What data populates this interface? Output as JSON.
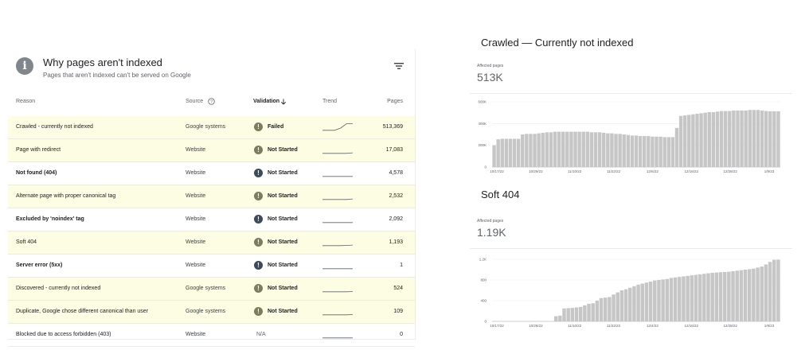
{
  "left_card": {
    "title": "Why pages aren't indexed",
    "subtitle": "Pages that aren't indexed can't be served on Google",
    "icon": "info-icon",
    "filter_icon": "filter-icon",
    "columns": {
      "reason": "Reason",
      "source": "Source",
      "validation": "Validation",
      "trend": "Trend",
      "pages": "Pages"
    },
    "rows": [
      {
        "reason": "Crawled - currently not indexed",
        "source": "Google systems",
        "validation": "Failed",
        "status": "warning",
        "pages": "513,369",
        "highlight": true,
        "bold": false,
        "trend": [
          0.3,
          0.3,
          0.3,
          0.5,
          0.9,
          0.9
        ]
      },
      {
        "reason": "Page with redirect",
        "source": "Website",
        "validation": "Not Started",
        "status": "warning",
        "pages": "17,083",
        "highlight": true,
        "bold": false,
        "trend": [
          0.3,
          0.3,
          0.3,
          0.3,
          0.3,
          0.35
        ]
      },
      {
        "reason": "Not found (404)",
        "source": "Website",
        "validation": "Not Started",
        "status": "info",
        "pages": "4,578",
        "highlight": false,
        "bold": true,
        "trend": [
          0.3,
          0.3,
          0.3,
          0.3,
          0.3,
          0.3
        ]
      },
      {
        "reason": "Alternate page with proper canonical tag",
        "source": "Website",
        "validation": "Not Started",
        "status": "warning",
        "pages": "2,532",
        "highlight": true,
        "bold": false,
        "trend": [
          0.3,
          0.3,
          0.3,
          0.3,
          0.3,
          0.35
        ]
      },
      {
        "reason": "Excluded by 'noindex' tag",
        "source": "Website",
        "validation": "Not Started",
        "status": "info",
        "pages": "2,092",
        "highlight": false,
        "bold": true,
        "trend": [
          0.3,
          0.3,
          0.3,
          0.3,
          0.3,
          0.3
        ]
      },
      {
        "reason": "Soft 404",
        "source": "Website",
        "validation": "Not Started",
        "status": "warning",
        "pages": "1,193",
        "highlight": true,
        "bold": false,
        "trend": [
          0.3,
          0.3,
          0.3,
          0.3,
          0.32,
          0.35
        ]
      },
      {
        "reason": "Server error (5xx)",
        "source": "Website",
        "validation": "Not Started",
        "status": "info",
        "pages": "1",
        "highlight": false,
        "bold": true,
        "trend": [
          0.3,
          0.3,
          0.3,
          0.3,
          0.3,
          0.3
        ]
      },
      {
        "reason": "Discovered - currently not indexed",
        "source": "Google systems",
        "validation": "Not Started",
        "status": "warning",
        "pages": "524",
        "highlight": true,
        "bold": false,
        "trend": [
          0.3,
          0.3,
          0.3,
          0.3,
          0.3,
          0.32
        ]
      },
      {
        "reason": "Duplicate, Google chose different canonical than user",
        "source": "Google systems",
        "validation": "Not Started",
        "status": "warning",
        "pages": "109",
        "highlight": true,
        "bold": false,
        "trend": [
          0.3,
          0.3,
          0.3,
          0.3,
          0.3,
          0.32
        ]
      },
      {
        "reason": "Blocked due to access forbidden (403)",
        "source": "Website",
        "validation": "N/A",
        "status": "none",
        "pages": "0",
        "highlight": false,
        "bold": false,
        "trend": [
          0.3,
          0.3,
          0.3,
          0.3,
          0.3,
          0.3
        ]
      }
    ]
  },
  "colors": {
    "warning": "#7d7d5c",
    "info": "#3c4a5c",
    "bar": "#c6c6c6",
    "highlight": "#fdfde3"
  },
  "chart_data": [
    {
      "type": "bar",
      "title": "Crawled — Currently not indexed",
      "label": "Affected pages",
      "value": "513K",
      "ylim": [
        0,
        600000
      ],
      "yticks": [
        0,
        200000,
        400000,
        600000
      ],
      "ytick_labels": [
        "0",
        "200K",
        "400K",
        "600K"
      ],
      "xticks": [
        "10/17/22",
        "10/29/22",
        "11/10/22",
        "11/22/22",
        "12/6/22",
        "12/16/22",
        "12/28/22",
        "1/9/23"
      ],
      "values": [
        200000,
        255000,
        260000,
        260000,
        260000,
        260000,
        260000,
        300000,
        305000,
        305000,
        305000,
        310000,
        315000,
        320000,
        320000,
        325000,
        325000,
        325000,
        325000,
        325000,
        325000,
        325000,
        325000,
        325000,
        320000,
        320000,
        320000,
        315000,
        310000,
        310000,
        305000,
        305000,
        300000,
        295000,
        290000,
        290000,
        285000,
        285000,
        285000,
        280000,
        280000,
        280000,
        275000,
        275000,
        275000,
        360000,
        470000,
        475000,
        480000,
        485000,
        490000,
        495000,
        500000,
        505000,
        505000,
        510000,
        515000,
        515000,
        515000,
        520000,
        520000,
        520000,
        520000,
        525000,
        525000,
        525000,
        520000,
        515000,
        513000,
        513000,
        513000
      ]
    },
    {
      "type": "bar",
      "title": "Soft 404",
      "label": "Affected pages",
      "value": "1.19K",
      "ylim": [
        0,
        1200
      ],
      "yticks": [
        0,
        400,
        800,
        1200
      ],
      "ytick_labels": [
        "0",
        "400",
        "800",
        "1.2K"
      ],
      "xticks": [
        "10/17/22",
        "10/29/22",
        "11/10/22",
        "11/22/22",
        "12/4/22",
        "12/16/22",
        "12/28/22",
        "1/9/23"
      ],
      "values": [
        0,
        0,
        0,
        0,
        0,
        0,
        0,
        0,
        0,
        0,
        0,
        0,
        0,
        0,
        0,
        100,
        110,
        250,
        255,
        260,
        270,
        280,
        310,
        340,
        350,
        400,
        450,
        460,
        470,
        520,
        560,
        600,
        620,
        650,
        680,
        710,
        730,
        750,
        770,
        790,
        800,
        810,
        820,
        840,
        850,
        860,
        870,
        880,
        890,
        900,
        910,
        920,
        930,
        940,
        945,
        950,
        955,
        960,
        970,
        980,
        990,
        1000,
        1010,
        1020,
        1040,
        1060,
        1100,
        1150,
        1190,
        1193
      ]
    }
  ]
}
